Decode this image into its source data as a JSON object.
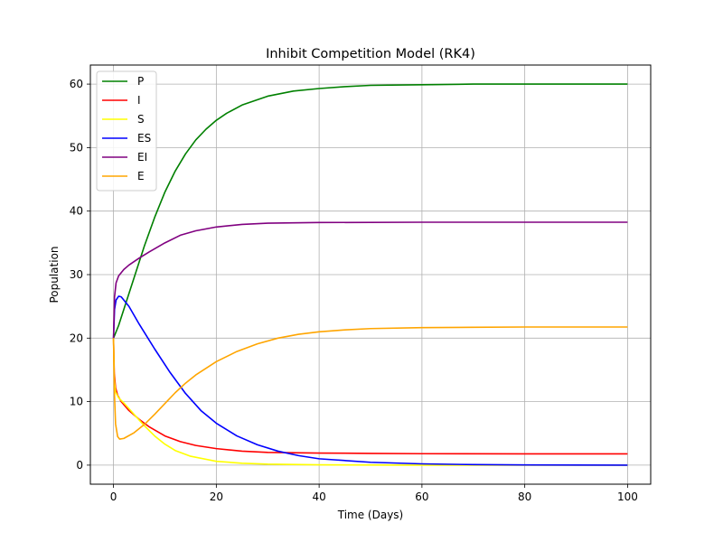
{
  "chart_data": {
    "type": "line",
    "title": "Inhibit Competition Model (RK4)",
    "xlabel": "Time (Days)",
    "ylabel": "Population",
    "xlim": [
      -4.5,
      104.5
    ],
    "ylim": [
      -3,
      63
    ],
    "xticks": [
      0,
      20,
      40,
      60,
      80,
      100
    ],
    "yticks": [
      0,
      10,
      20,
      30,
      40,
      50,
      60
    ],
    "grid": true,
    "legend": "top-left",
    "series": [
      {
        "name": "P",
        "color": "#008000",
        "points": [
          [
            0,
            20
          ],
          [
            1,
            22
          ],
          [
            2,
            24.5
          ],
          [
            4,
            29.5
          ],
          [
            6,
            34.5
          ],
          [
            8,
            39
          ],
          [
            10,
            43
          ],
          [
            12,
            46.3
          ],
          [
            14,
            49
          ],
          [
            16,
            51.2
          ],
          [
            18,
            52.9
          ],
          [
            20,
            54.3
          ],
          [
            22,
            55.4
          ],
          [
            25,
            56.7
          ],
          [
            30,
            58.1
          ],
          [
            35,
            58.9
          ],
          [
            40,
            59.3
          ],
          [
            45,
            59.6
          ],
          [
            50,
            59.8
          ],
          [
            60,
            59.9
          ],
          [
            70,
            60
          ],
          [
            80,
            60
          ],
          [
            100,
            60
          ]
        ]
      },
      {
        "name": "I",
        "color": "#ff0000",
        "points": [
          [
            0,
            20
          ],
          [
            0.15,
            14.5
          ],
          [
            0.4,
            12.2
          ],
          [
            0.8,
            11
          ],
          [
            1.5,
            10
          ],
          [
            3,
            8.6
          ],
          [
            5,
            7.2
          ],
          [
            7,
            6
          ],
          [
            10,
            4.6
          ],
          [
            13,
            3.7
          ],
          [
            16,
            3.1
          ],
          [
            20,
            2.6
          ],
          [
            25,
            2.2
          ],
          [
            30,
            2.0
          ],
          [
            40,
            1.9
          ],
          [
            50,
            1.85
          ],
          [
            60,
            1.8
          ],
          [
            80,
            1.78
          ],
          [
            100,
            1.78
          ]
        ]
      },
      {
        "name": "S",
        "color": "#ffff00",
        "points": [
          [
            0,
            20
          ],
          [
            0.15,
            13.5
          ],
          [
            0.4,
            11.5
          ],
          [
            1,
            10.6
          ],
          [
            2,
            9.8
          ],
          [
            4,
            8
          ],
          [
            6,
            6.2
          ],
          [
            8,
            4.6
          ],
          [
            10,
            3.3
          ],
          [
            12,
            2.3
          ],
          [
            15,
            1.4
          ],
          [
            20,
            0.6
          ],
          [
            25,
            0.3
          ],
          [
            30,
            0.15
          ],
          [
            40,
            0.05
          ],
          [
            60,
            0
          ],
          [
            100,
            0
          ]
        ]
      },
      {
        "name": "ES",
        "color": "#0000ff",
        "points": [
          [
            0,
            20
          ],
          [
            0.2,
            24.5
          ],
          [
            0.5,
            26
          ],
          [
            1,
            26.6
          ],
          [
            1.5,
            26.5
          ],
          [
            3,
            25
          ],
          [
            5,
            22.2
          ],
          [
            8,
            18.3
          ],
          [
            11,
            14.6
          ],
          [
            14,
            11.3
          ],
          [
            17,
            8.6
          ],
          [
            20,
            6.6
          ],
          [
            24,
            4.6
          ],
          [
            28,
            3.2
          ],
          [
            32,
            2.2
          ],
          [
            36,
            1.5
          ],
          [
            40,
            1.0
          ],
          [
            50,
            0.45
          ],
          [
            60,
            0.2
          ],
          [
            70,
            0.08
          ],
          [
            80,
            0.03
          ],
          [
            100,
            0
          ]
        ]
      },
      {
        "name": "EI",
        "color": "#800080",
        "points": [
          [
            0,
            20
          ],
          [
            0.2,
            26.5
          ],
          [
            0.5,
            28.7
          ],
          [
            1,
            29.8
          ],
          [
            2,
            30.8
          ],
          [
            3,
            31.5
          ],
          [
            5,
            32.6
          ],
          [
            7,
            33.6
          ],
          [
            10,
            35
          ],
          [
            13,
            36.2
          ],
          [
            16,
            36.9
          ],
          [
            20,
            37.5
          ],
          [
            25,
            37.9
          ],
          [
            30,
            38.1
          ],
          [
            40,
            38.2
          ],
          [
            60,
            38.25
          ],
          [
            100,
            38.25
          ]
        ]
      },
      {
        "name": "E",
        "color": "#ffa500",
        "points": [
          [
            0,
            20
          ],
          [
            0.15,
            12
          ],
          [
            0.4,
            6.5
          ],
          [
            0.8,
            4.5
          ],
          [
            1.2,
            4.1
          ],
          [
            2,
            4.2
          ],
          [
            4,
            5.1
          ],
          [
            6,
            6.4
          ],
          [
            8,
            8
          ],
          [
            10,
            9.7
          ],
          [
            12,
            11.4
          ],
          [
            14,
            12.9
          ],
          [
            16,
            14.2
          ],
          [
            20,
            16.3
          ],
          [
            24,
            17.9
          ],
          [
            28,
            19.1
          ],
          [
            32,
            20
          ],
          [
            36,
            20.6
          ],
          [
            40,
            21
          ],
          [
            45,
            21.3
          ],
          [
            50,
            21.5
          ],
          [
            60,
            21.65
          ],
          [
            70,
            21.7
          ],
          [
            80,
            21.75
          ],
          [
            100,
            21.75
          ]
        ]
      }
    ]
  }
}
